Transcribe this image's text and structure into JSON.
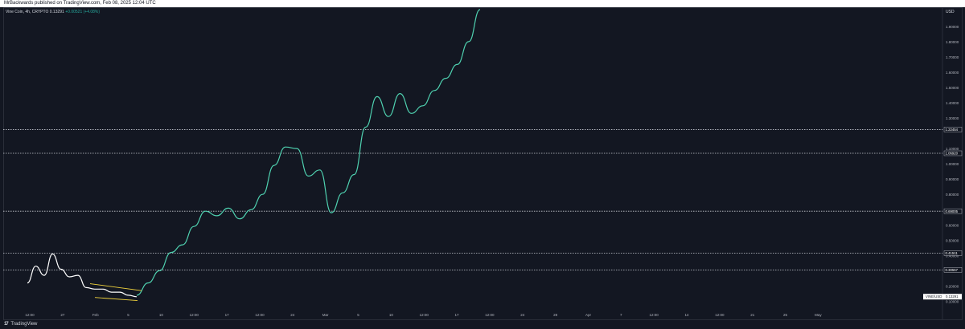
{
  "header": {
    "publish_line": "MrBackwards published on TradingView.com, Feb 08, 2025 12:04 UTC"
  },
  "legend": {
    "symbol": "Vine Coin, 4h, CRYPTO",
    "price": "0.13291",
    "change": "+0.00521 (+4.08%)"
  },
  "footer": {
    "logo": "17",
    "brand": "TradingView"
  },
  "colors": {
    "background": "#131722",
    "history_line": "#ffffff",
    "projection_line": "#4fd1b0",
    "wedge": "#f2d43d",
    "level_line": "#c8cbd3"
  },
  "chart_data": {
    "type": "line",
    "currency": "USD",
    "y_range": [
      0.05,
      2.02
    ],
    "y_ticks": [
      "1.90000",
      "1.80000",
      "1.70000",
      "1.60000",
      "1.50000",
      "1.40000",
      "1.30000",
      "1.10000",
      "1.00000",
      "0.90000",
      "0.80000",
      "0.60000",
      "0.50000",
      "0.40000",
      "0.30000",
      "0.20000",
      "0.10000"
    ],
    "x_ticks": [
      "12:00",
      "27",
      "Feb",
      "5",
      "10",
      "12:00",
      "17",
      "12:00",
      "24",
      "Mar",
      "5",
      "10",
      "12:00",
      "17",
      "12:00",
      "24",
      "28",
      "Apr",
      "7",
      "12:00",
      "14",
      "12:00",
      "21",
      "25",
      "May"
    ],
    "levels": [
      {
        "label": "1.22454",
        "value": 1.22454
      },
      {
        "label": "1.06920",
        "value": 1.0692
      },
      {
        "label": "0.69005",
        "value": 0.69005
      },
      {
        "label": "0.41511",
        "value": 0.41511
      },
      {
        "label": "0.30557",
        "value": 0.30557
      }
    ],
    "current_price": {
      "label": "VINE/USD",
      "value": "0.13291"
    },
    "series": [
      {
        "x": [
          "12:00",
          "",
          "",
          "27",
          "",
          "",
          "",
          "",
          "Feb",
          "",
          "5",
          "",
          "",
          "10"
        ],
        "values": [
          0.22,
          0.33,
          0.27,
          0.41,
          0.31,
          0.26,
          0.27,
          0.19,
          0.18,
          0.18,
          0.16,
          0.16,
          0.14,
          0.13
        ]
      },
      {
        "x": [
          "10",
          "",
          "12:00",
          "",
          "17",
          "",
          "12:00",
          "",
          "24",
          "",
          "Mar",
          "",
          "5",
          "",
          "10",
          "",
          "",
          "12:00",
          "",
          "17",
          "",
          "12:00",
          "",
          "24",
          "",
          "",
          "28",
          "",
          "",
          "",
          "Apr"
        ],
        "values": [
          0.14,
          0.22,
          0.3,
          0.42,
          0.47,
          0.59,
          0.69,
          0.66,
          0.71,
          0.64,
          0.7,
          0.8,
          0.99,
          1.11,
          1.1,
          0.92,
          0.96,
          0.68,
          0.81,
          0.93,
          1.24,
          1.44,
          1.31,
          1.46,
          1.33,
          1.38,
          1.48,
          1.56,
          1.65,
          1.8,
          2.01
        ]
      }
    ]
  }
}
